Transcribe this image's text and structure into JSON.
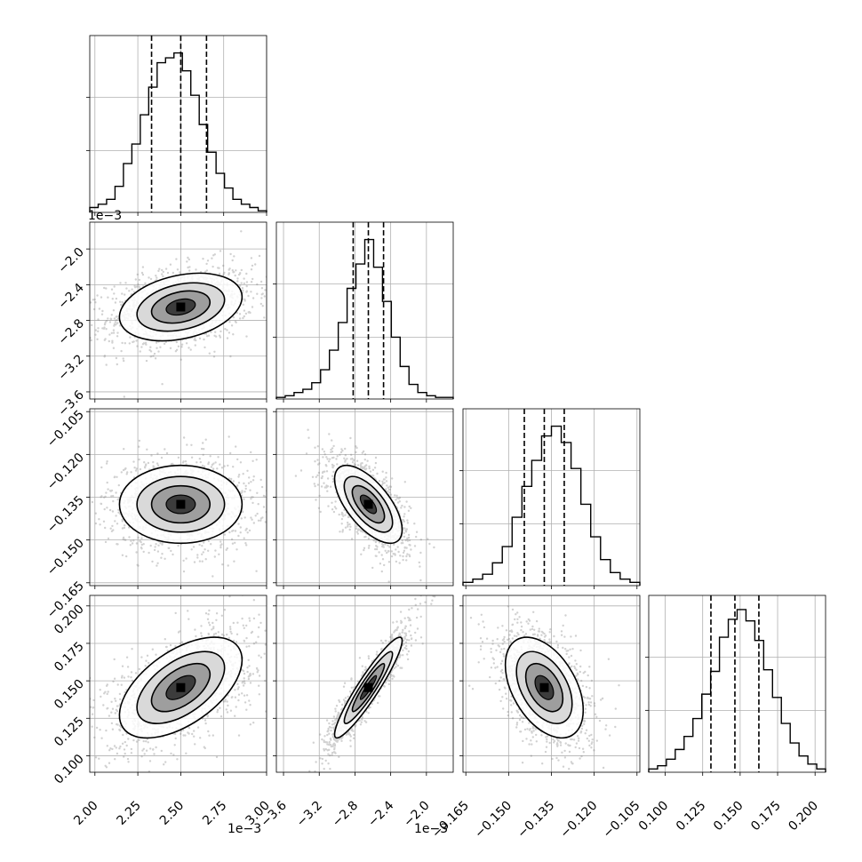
{
  "chart_data": {
    "type": "corner",
    "parameters": [
      {
        "range": [
          0.00197,
          0.003
        ],
        "ticks": [
          0.002,
          0.00225,
          0.0025,
          0.00275,
          0.003
        ],
        "tick_labels": [
          "2.00",
          "2.25",
          "2.50",
          "2.75",
          "3.00"
        ],
        "offset": "1e−3",
        "mean": 0.0025,
        "sigma": 0.00017,
        "quantiles": [
          0.00233,
          0.0025,
          0.00265
        ],
        "hist": [
          0.03,
          0.05,
          0.08,
          0.16,
          0.3,
          0.42,
          0.6,
          0.77,
          0.92,
          0.95,
          0.98,
          0.87,
          0.72,
          0.54,
          0.37,
          0.24,
          0.15,
          0.08,
          0.05,
          0.03,
          0.01
        ]
      },
      {
        "range": [
          -0.00368,
          -0.0017
        ],
        "ticks": [
          -0.0036,
          -0.0032,
          -0.0028,
          -0.0024,
          -0.002
        ],
        "tick_labels": [
          "−3.6",
          "−3.2",
          "−2.8",
          "−2.4",
          "−2.0"
        ],
        "offset": "1e−3",
        "mean": -0.00265,
        "sigma": 0.00018,
        "quantiles": [
          -0.00282,
          -0.00265,
          -0.00248
        ],
        "hist": [
          0.01,
          0.02,
          0.04,
          0.06,
          0.1,
          0.18,
          0.3,
          0.47,
          0.68,
          0.83,
          0.98,
          0.81,
          0.6,
          0.38,
          0.2,
          0.09,
          0.04,
          0.02,
          0.01,
          0.01
        ]
      },
      {
        "range": [
          -0.166,
          -0.104
        ],
        "ticks": [
          -0.165,
          -0.15,
          -0.135,
          -0.12,
          -0.105
        ],
        "tick_labels": [
          "−0.165",
          "−0.150",
          "−0.135",
          "−0.120",
          "−0.105"
        ],
        "offset": "",
        "mean": -0.1375,
        "sigma": 0.0065,
        "quantiles": [
          -0.1445,
          -0.1375,
          -0.1305
        ],
        "hist": [
          0.02,
          0.04,
          0.07,
          0.14,
          0.24,
          0.42,
          0.61,
          0.77,
          0.92,
          0.98,
          0.88,
          0.72,
          0.5,
          0.3,
          0.16,
          0.08,
          0.04,
          0.02
        ]
      },
      {
        "range": [
          0.089,
          0.207
        ],
        "ticks": [
          0.1,
          0.125,
          0.15,
          0.175,
          0.2
        ],
        "tick_labels": [
          "0.100",
          "0.125",
          "0.150",
          "0.175",
          "0.200"
        ],
        "offset": "",
        "mean": 0.1455,
        "sigma": 0.016,
        "quantiles": [
          0.1305,
          0.1465,
          0.1625
        ],
        "hist": [
          0.02,
          0.04,
          0.08,
          0.14,
          0.22,
          0.33,
          0.48,
          0.62,
          0.83,
          0.94,
          1.0,
          0.93,
          0.81,
          0.63,
          0.46,
          0.3,
          0.18,
          0.1,
          0.05,
          0.02
        ]
      }
    ],
    "correlations": [
      {
        "row": 1,
        "col": 0,
        "rho": 0.3
      },
      {
        "row": 2,
        "col": 0,
        "rho": 0.0
      },
      {
        "row": 2,
        "col": 1,
        "rho": -0.65
      },
      {
        "row": 3,
        "col": 0,
        "rho": 0.55
      },
      {
        "row": 3,
        "col": 1,
        "rho": 0.93
      },
      {
        "row": 3,
        "col": 2,
        "rho": -0.45
      }
    ],
    "quantile_lines": "dashed",
    "grid": true
  }
}
